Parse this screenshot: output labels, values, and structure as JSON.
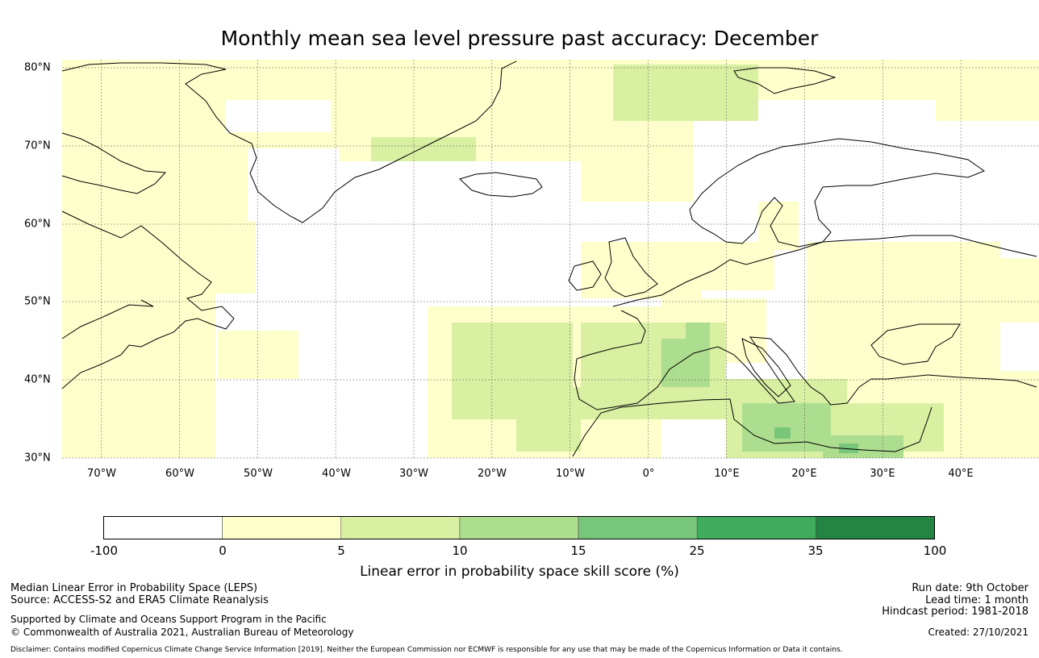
{
  "title": "Monthly mean sea level pressure past accuracy: December",
  "map": {
    "lat_labels": [
      "80°N",
      "70°N",
      "60°N",
      "50°N",
      "40°N",
      "30°N"
    ],
    "lon_labels": [
      "70°W",
      "60°W",
      "50°W",
      "40°W",
      "30°W",
      "20°W",
      "10°W",
      "0°",
      "10°E",
      "20°E",
      "30°E",
      "40°E"
    ],
    "extent": {
      "lon_min": -75,
      "lon_max": 50,
      "lat_min": 30,
      "lat_max": 81
    }
  },
  "colorbar": {
    "ticks": [
      "-100",
      "0",
      "5",
      "10",
      "15",
      "25",
      "35",
      "100"
    ],
    "colors": [
      "#ffffff",
      "#ffffcc",
      "#d9f0a3",
      "#addd8e",
      "#78c679",
      "#41ab5d",
      "#238443"
    ],
    "label": "Linear error in probability space skill score (%)"
  },
  "footer": {
    "left1": "Median Linear Error in Probability Space (LEPS)",
    "left2": "Source: ACCESS-S2 and ERA5 Climate Reanalysis",
    "left3": "Supported by Climate and Oceans Support Program in the Pacific",
    "left4": "© Commonwealth of Australia 2021, Australian Bureau of Meteorology",
    "right1": "Run date: 9th October",
    "right2": "Lead time: 1 month",
    "right3": "Hindcast period: 1981-2018",
    "right4": "Created: 27/10/2021",
    "disclaimer": "Disclaimer: Contains modified Copernicus Climate Change Service Information [2019]. Neither the European Commission nor ECMWF is responsible for any use that may be made of the Copernicus Information or Data it contains."
  }
}
